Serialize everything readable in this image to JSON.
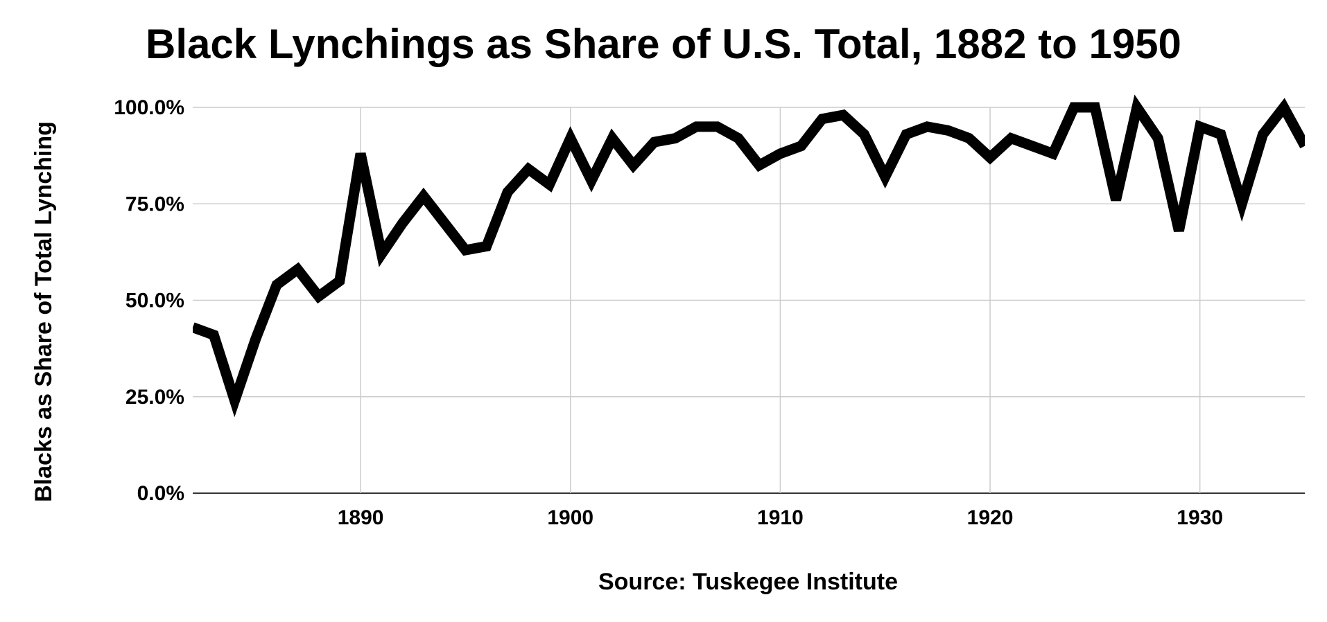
{
  "chart_data": {
    "type": "line",
    "title": "Black Lynchings as Share of U.S. Total, 1882 to 1950",
    "ylabel": "Blacks as Share of Total Lynching",
    "xlabel": "Source: Tuskegee Institute",
    "x_ticks": [
      "1890",
      "1900",
      "1910",
      "1920",
      "1930"
    ],
    "y_ticks": [
      "0.0%",
      "25.0%",
      "50.0%",
      "75.0%",
      "100.0%"
    ],
    "xlim": [
      1882,
      1935
    ],
    "ylim": [
      0,
      100
    ],
    "grid": true,
    "legend": "none",
    "line_color": "#000000",
    "grid_color": "#cccccc",
    "series": [
      {
        "x": [
          1882,
          1883,
          1884,
          1885,
          1886,
          1887,
          1888,
          1889,
          1890,
          1891,
          1892,
          1893,
          1894,
          1895,
          1896,
          1897,
          1898,
          1899,
          1900,
          1901,
          1902,
          1903,
          1904,
          1905,
          1906,
          1907,
          1908,
          1909,
          1910,
          1911,
          1912,
          1913,
          1914,
          1915,
          1916,
          1917,
          1918,
          1919,
          1920,
          1921,
          1922,
          1923,
          1924,
          1925,
          1926,
          1927,
          1928,
          1929,
          1930,
          1931,
          1932,
          1933,
          1934,
          1935
        ],
        "values": [
          43,
          41,
          24,
          40,
          54,
          58,
          51,
          55,
          88,
          62,
          70,
          77,
          70,
          63,
          64,
          78,
          84,
          80,
          92,
          81,
          92,
          85,
          91,
          92,
          95,
          95,
          92,
          85,
          88,
          90,
          97,
          98,
          93,
          82,
          93,
          95,
          94,
          92,
          87,
          92,
          90,
          88,
          100,
          100,
          76,
          100,
          92,
          68,
          95,
          93,
          75,
          93,
          100,
          90
        ]
      }
    ]
  }
}
